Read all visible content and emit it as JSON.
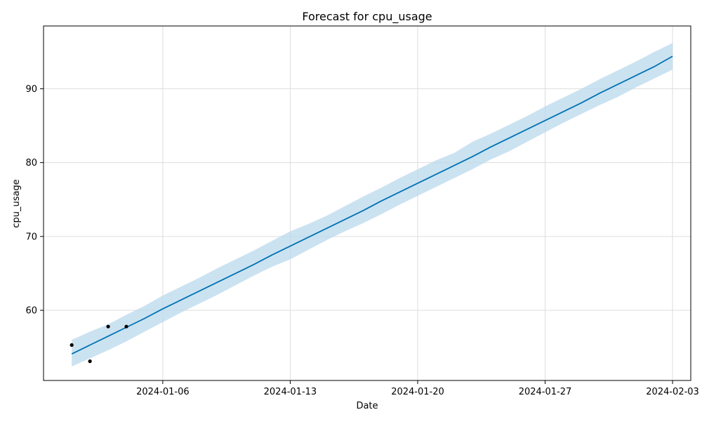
{
  "chart_data": {
    "type": "line",
    "title": "Forecast for cpu_usage",
    "xlabel": "Date",
    "ylabel": "cpu_usage",
    "x_ticks": [
      "2024-01-06",
      "2024-01-13",
      "2024-01-20",
      "2024-01-27",
      "2024-02-03"
    ],
    "y_ticks": [
      60,
      70,
      80,
      90
    ],
    "xlim": [
      "2024-01-01",
      "2024-02-04"
    ],
    "ylim": [
      50.5,
      98.5
    ],
    "grid": true,
    "colors": {
      "forecast_line": "#0072B2",
      "uncertainty_band": "#b9d8ec",
      "observed_points": "#000000",
      "grid": "#dddddd"
    },
    "observed": {
      "x": [
        "2024-01-01",
        "2024-01-02",
        "2024-01-03",
        "2024-01-04"
      ],
      "y": [
        55.3,
        53.1,
        57.8,
        57.8
      ]
    },
    "forecast": {
      "x": [
        "2024-01-01",
        "2024-01-02",
        "2024-01-03",
        "2024-01-04",
        "2024-01-05",
        "2024-01-06",
        "2024-01-07",
        "2024-01-08",
        "2024-01-09",
        "2024-01-10",
        "2024-01-11",
        "2024-01-12",
        "2024-01-13",
        "2024-01-14",
        "2024-01-15",
        "2024-01-16",
        "2024-01-17",
        "2024-01-18",
        "2024-01-19",
        "2024-01-20",
        "2024-01-21",
        "2024-01-22",
        "2024-01-23",
        "2024-01-24",
        "2024-01-25",
        "2024-01-26",
        "2024-01-27",
        "2024-01-28",
        "2024-01-29",
        "2024-01-30",
        "2024-01-31",
        "2024-02-01",
        "2024-02-02",
        "2024-02-03"
      ],
      "yhat": [
        54.1,
        55.3,
        56.5,
        57.7,
        58.9,
        60.2,
        61.4,
        62.6,
        63.8,
        65.0,
        66.2,
        67.5,
        68.7,
        69.9,
        71.1,
        72.3,
        73.5,
        74.8,
        76.0,
        77.2,
        78.4,
        79.6,
        80.8,
        82.1,
        83.3,
        84.5,
        85.7,
        86.9,
        88.1,
        89.4,
        90.6,
        91.8,
        93.0,
        94.4
      ],
      "yhat_lower": [
        52.4,
        53.5,
        54.6,
        55.8,
        57.1,
        58.4,
        59.7,
        60.9,
        62.1,
        63.4,
        64.7,
        65.9,
        66.9,
        68.2,
        69.5,
        70.7,
        71.8,
        73.0,
        74.3,
        75.5,
        76.7,
        77.9,
        79.1,
        80.4,
        81.5,
        82.8,
        84.1,
        85.4,
        86.6,
        87.8,
        88.9,
        90.2,
        91.4,
        92.6
      ],
      "yhat_upper": [
        56.0,
        57.1,
        58.1,
        59.4,
        60.6,
        62.0,
        63.2,
        64.4,
        65.7,
        66.9,
        68.1,
        69.4,
        70.7,
        71.7,
        72.8,
        74.1,
        75.4,
        76.6,
        77.9,
        79.1,
        80.3,
        81.3,
        82.8,
        83.9,
        85.1,
        86.3,
        87.6,
        88.8,
        90.0,
        91.3,
        92.5,
        93.7,
        95.0,
        96.2
      ]
    }
  }
}
